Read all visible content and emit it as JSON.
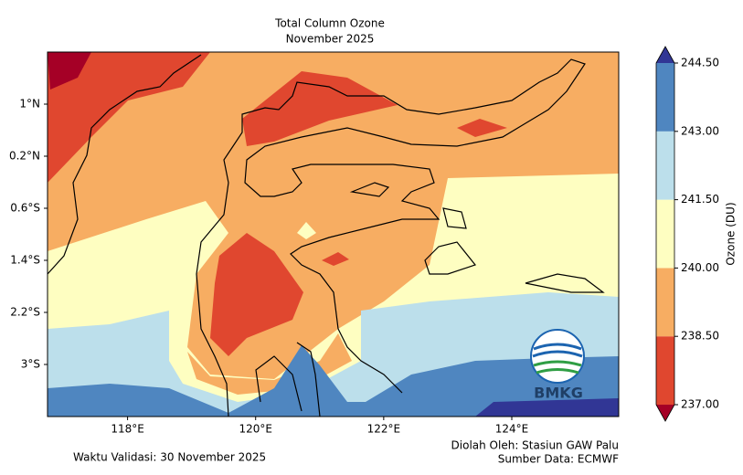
{
  "chart_data": {
    "type": "contour-map",
    "title": "Total Column Ozone",
    "subtitle": "November 2025",
    "xlim": [
      116.75,
      125.67
    ],
    "ylim": [
      -3.8,
      1.8
    ],
    "xticks": [
      {
        "value": 118,
        "label": "118°E"
      },
      {
        "value": 120,
        "label": "120°E"
      },
      {
        "value": 122,
        "label": "122°E"
      },
      {
        "value": 124,
        "label": "124°E"
      }
    ],
    "yticks": [
      {
        "value": 1,
        "label": "1°N"
      },
      {
        "value": 0.2,
        "label": "0.2°N"
      },
      {
        "value": -0.6,
        "label": "0.6°S"
      },
      {
        "value": -1.4,
        "label": "1.4°S"
      },
      {
        "value": -2.2,
        "label": "2.2°S"
      },
      {
        "value": -3,
        "label": "3°S"
      }
    ],
    "colorbar": {
      "label": "Ozone (DU)",
      "lim": [
        237,
        244.5
      ],
      "ticks": [
        {
          "value": 237,
          "label": "237.00"
        },
        {
          "value": 238.5,
          "label": "238.50"
        },
        {
          "value": 240,
          "label": "240.00"
        },
        {
          "value": 241.5,
          "label": "241.50"
        },
        {
          "value": 243,
          "label": "243.00"
        },
        {
          "value": 244.5,
          "label": "244.50"
        }
      ],
      "colors": [
        "#a50026",
        "#e0472f",
        "#f7ad62",
        "#fefec1",
        "#bcdfeb",
        "#4f86c0",
        "#313695"
      ]
    },
    "logo": "BMKG",
    "footer_left": "Waktu Validasi: 30 November 2025",
    "footer_right": [
      "Diolah Oleh: Stasiun GAW Palu",
      "Sumber Data: ECMWF"
    ]
  }
}
